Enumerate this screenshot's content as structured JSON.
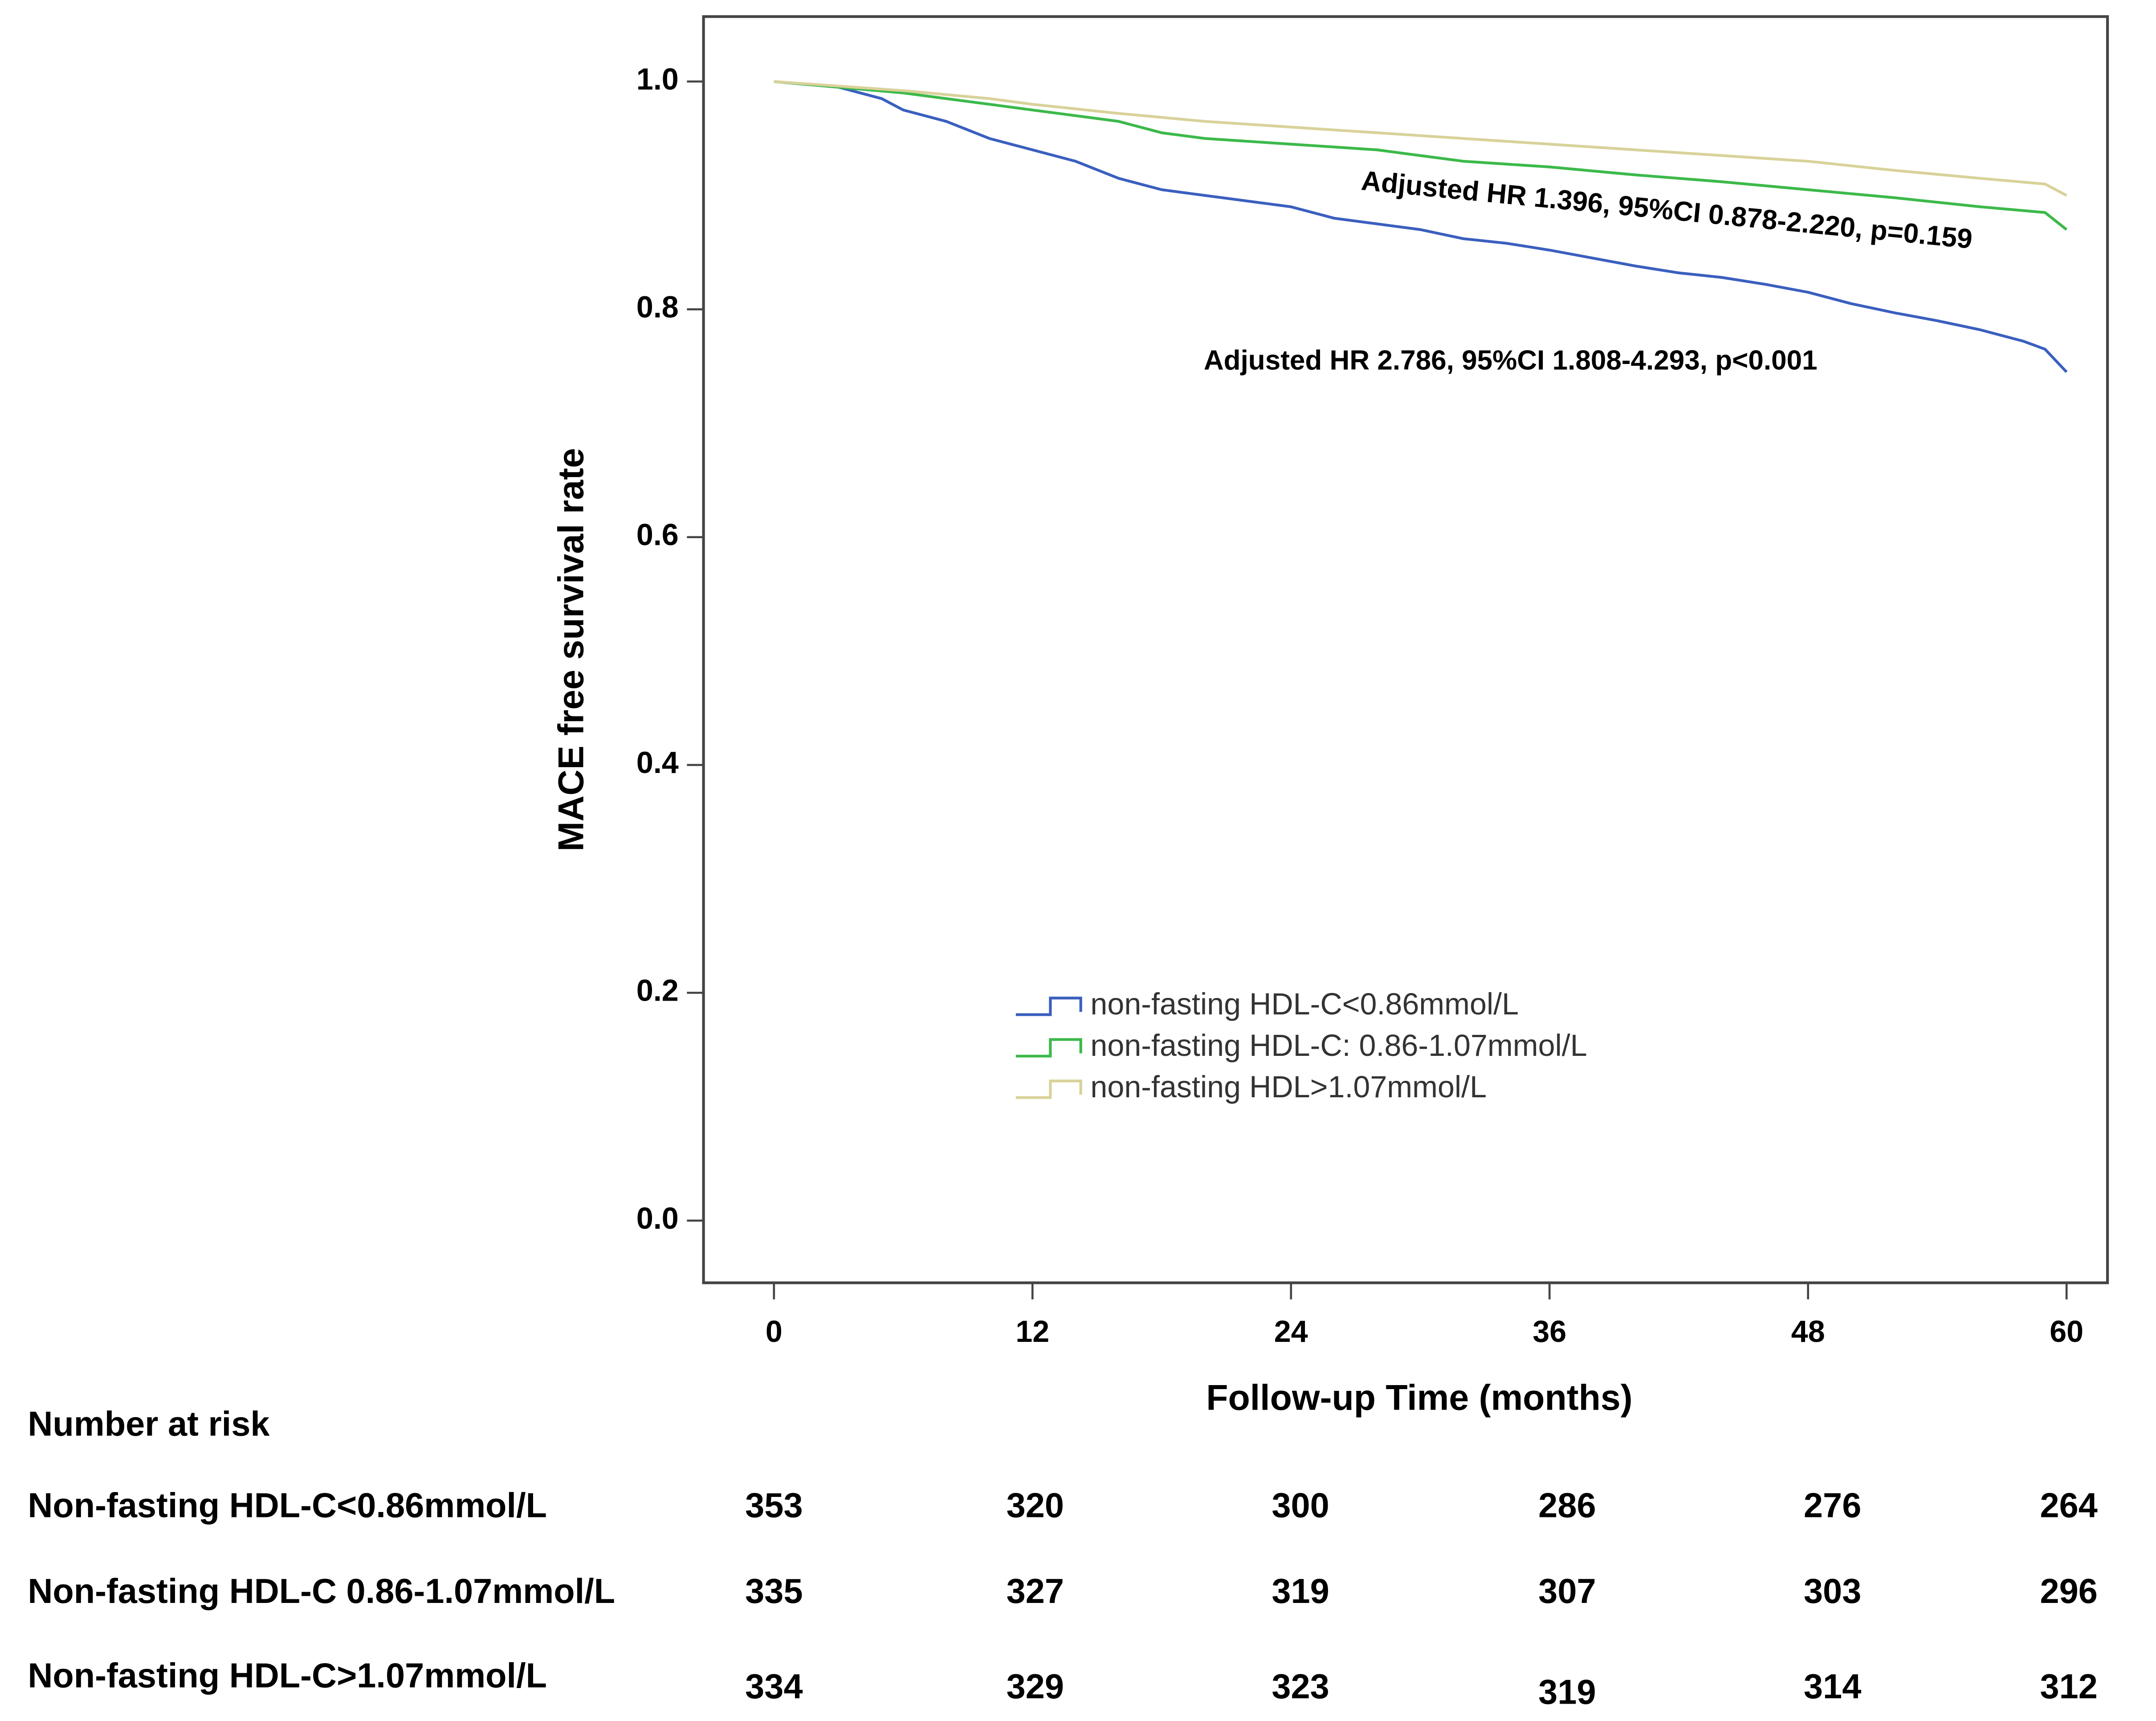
{
  "chart_data": {
    "type": "line",
    "xlabel": "Follow-up Time (months)",
    "ylabel": "MACE free survival rate",
    "xlim": [
      -3.27,
      61.9
    ],
    "ylim": [
      -0.0546,
      1.057
    ],
    "xticks": [
      0,
      12,
      24,
      36,
      48,
      60
    ],
    "yticks": [
      {
        "value": 0,
        "label": "0.0"
      },
      {
        "value": 0.2,
        "label": "0.2"
      },
      {
        "value": 0.4,
        "label": "0.4"
      },
      {
        "value": 0.6,
        "label": "0.6"
      },
      {
        "value": 0.8,
        "label": "0.8"
      },
      {
        "value": 1,
        "label": "1.0"
      }
    ],
    "series": [
      {
        "name": "non-fasting HDL-C<0.86mmol/L",
        "color": "#3a5fbf",
        "x": [
          0,
          3,
          5,
          6,
          8,
          10,
          12,
          14,
          16,
          18,
          20,
          22,
          24,
          26,
          28,
          30,
          32,
          34,
          36,
          38,
          40,
          42,
          44,
          46,
          48,
          50,
          52,
          54,
          56,
          58,
          59,
          60
        ],
        "values": [
          1.0,
          0.995,
          0.985,
          0.975,
          0.965,
          0.95,
          0.94,
          0.93,
          0.915,
          0.905,
          0.9,
          0.895,
          0.89,
          0.88,
          0.875,
          0.87,
          0.862,
          0.858,
          0.852,
          0.845,
          0.838,
          0.832,
          0.828,
          0.822,
          0.815,
          0.805,
          0.797,
          0.79,
          0.782,
          0.772,
          0.765,
          0.745
        ]
      },
      {
        "name": "non-fasting HDL-C: 0.86-1.07mmol/L",
        "color": "#3cb94a",
        "x": [
          0,
          6,
          10,
          12,
          16,
          18,
          20,
          24,
          28,
          32,
          36,
          40,
          44,
          48,
          52,
          56,
          59,
          60
        ],
        "values": [
          1.0,
          0.99,
          0.98,
          0.975,
          0.965,
          0.955,
          0.95,
          0.945,
          0.94,
          0.93,
          0.925,
          0.918,
          0.912,
          0.905,
          0.898,
          0.89,
          0.885,
          0.87
        ]
      },
      {
        "name": "non-fasting HDL>1.07mmol/L",
        "color": "#d9d29a",
        "x": [
          0,
          6,
          10,
          12,
          16,
          20,
          24,
          28,
          32,
          36,
          40,
          44,
          48,
          52,
          56,
          59,
          60
        ],
        "values": [
          1.0,
          0.992,
          0.985,
          0.98,
          0.972,
          0.965,
          0.96,
          0.955,
          0.95,
          0.945,
          0.94,
          0.935,
          0.93,
          0.922,
          0.915,
          0.91,
          0.9
        ]
      }
    ],
    "annotations": [
      "Adjusted HR 1.396, 95%CI 0.878-2.220, p=0.159",
      "Adjusted HR 2.786, 95%CI 1.808-4.293, p<0.001"
    ],
    "risk_table": {
      "title": "Number at risk",
      "rows": [
        {
          "label": "Non-fasting HDL-C<0.86mmol/L",
          "values": [
            353,
            320,
            300,
            286,
            276,
            264
          ]
        },
        {
          "label": "Non-fasting HDL-C 0.86-1.07mmol/L",
          "values": [
            335,
            327,
            319,
            307,
            303,
            296
          ]
        },
        {
          "label": "Non-fasting HDL-C>1.07mmol/L",
          "values": [
            334,
            329,
            323,
            319,
            314,
            312
          ]
        }
      ]
    }
  }
}
